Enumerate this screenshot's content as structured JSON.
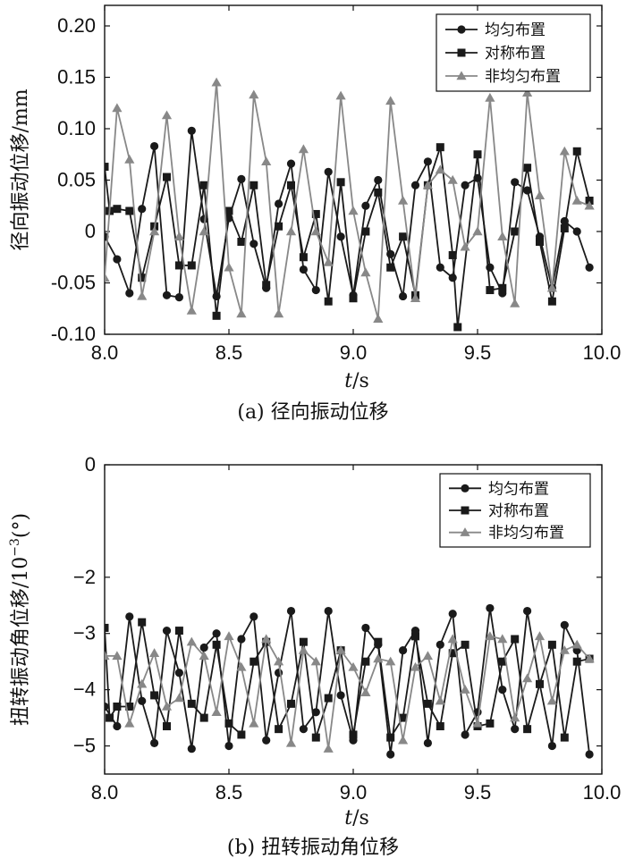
{
  "chart_data": [
    {
      "type": "line",
      "caption": "(a) 径向振动位移",
      "ylabel": "径向振动位移/mm",
      "xlabel": "t/s",
      "xlabel_var": "t",
      "xlabel_unit": "/s",
      "xlim": [
        8.0,
        10.0
      ],
      "ylim": [
        -0.1,
        0.22
      ],
      "xticks": [
        "8.0",
        "8.5",
        "9.0",
        "9.5",
        "10.0"
      ],
      "yticks": [
        "-0.10",
        "-0.05",
        "0",
        "0.05",
        "0.10",
        "0.15",
        "0.20"
      ],
      "legend_position": "top-right",
      "series": [
        {
          "name": "均匀布置",
          "marker": "circle",
          "color": "#1a1a1a",
          "x": [
            8.0,
            8.05,
            8.1,
            8.15,
            8.2,
            8.25,
            8.3,
            8.35,
            8.4,
            8.45,
            8.5,
            8.55,
            8.6,
            8.65,
            8.7,
            8.75,
            8.8,
            8.85,
            8.9,
            8.95,
            9.0,
            9.05,
            9.1,
            9.15,
            9.2,
            9.25,
            9.3,
            9.35,
            9.4,
            9.45,
            9.5,
            9.55,
            9.6,
            9.65,
            9.7,
            9.75,
            9.8,
            9.85,
            9.9,
            9.95
          ],
          "y": [
            -0.005,
            -0.027,
            -0.06,
            0.022,
            0.083,
            -0.062,
            -0.064,
            0.098,
            0.012,
            -0.063,
            0.013,
            0.051,
            -0.012,
            -0.055,
            0.027,
            0.066,
            -0.037,
            -0.057,
            0.058,
            -0.005,
            -0.062,
            0.025,
            0.05,
            -0.022,
            -0.063,
            0.045,
            0.068,
            -0.035,
            -0.045,
            0.045,
            0.052,
            -0.035,
            -0.06,
            0.048,
            0.04,
            -0.005,
            -0.055,
            0.01,
            0.0,
            -0.035
          ]
        },
        {
          "name": "对称布置",
          "marker": "square",
          "color": "#1a1a1a",
          "x": [
            8.0,
            8.02,
            8.05,
            8.1,
            8.15,
            8.2,
            8.25,
            8.3,
            8.35,
            8.4,
            8.45,
            8.5,
            8.55,
            8.6,
            8.65,
            8.7,
            8.75,
            8.8,
            8.85,
            8.9,
            8.95,
            9.0,
            9.05,
            9.1,
            9.15,
            9.2,
            9.25,
            9.3,
            9.35,
            9.4,
            9.42,
            9.5,
            9.55,
            9.6,
            9.65,
            9.7,
            9.75,
            9.8,
            9.85,
            9.9,
            9.95
          ],
          "y": [
            0.063,
            0.02,
            0.022,
            0.02,
            -0.045,
            0.005,
            0.053,
            -0.033,
            -0.033,
            0.045,
            -0.082,
            0.02,
            -0.01,
            0.045,
            -0.052,
            0.005,
            0.045,
            -0.025,
            0.017,
            -0.068,
            0.048,
            -0.065,
            0.0,
            0.038,
            -0.035,
            -0.005,
            -0.062,
            0.045,
            0.082,
            -0.023,
            -0.093,
            0.075,
            -0.057,
            -0.055,
            0.0,
            0.062,
            -0.01,
            -0.068,
            0.003,
            0.078,
            0.03
          ]
        },
        {
          "name": "非均匀布置",
          "marker": "triangle",
          "color": "#888888",
          "x": [
            8.0,
            8.05,
            8.1,
            8.15,
            8.2,
            8.25,
            8.3,
            8.35,
            8.4,
            8.45,
            8.5,
            8.55,
            8.6,
            8.65,
            8.7,
            8.75,
            8.8,
            8.85,
            8.9,
            8.95,
            9.0,
            9.05,
            9.1,
            9.15,
            9.2,
            9.25,
            9.3,
            9.35,
            9.4,
            9.45,
            9.5,
            9.55,
            9.6,
            9.65,
            9.7,
            9.75,
            9.8,
            9.85,
            9.9,
            9.95
          ],
          "y": [
            -0.045,
            0.12,
            0.07,
            -0.063,
            0.0,
            0.113,
            -0.005,
            -0.077,
            0.0,
            0.145,
            -0.035,
            -0.08,
            0.133,
            0.068,
            -0.08,
            0.0,
            0.08,
            0.0,
            -0.03,
            0.132,
            0.02,
            -0.04,
            -0.085,
            0.127,
            0.03,
            -0.065,
            0.045,
            0.06,
            0.05,
            -0.015,
            0.0,
            0.13,
            -0.005,
            -0.07,
            0.135,
            0.035,
            -0.055,
            0.078,
            0.03,
            0.025
          ]
        }
      ]
    },
    {
      "type": "line",
      "caption": "(b) 扭转振动角位移",
      "ylabel": "扭转振动角位移/10",
      "ylabel_exp": "−3",
      "ylabel_unit": "(°)",
      "xlabel": "t/s",
      "xlabel_var": "t",
      "xlabel_unit": "/s",
      "xlim": [
        8.0,
        10.0
      ],
      "ylim": [
        -5.5,
        0
      ],
      "xticks": [
        "8.0",
        "8.5",
        "9.0",
        "9.5",
        "10.0"
      ],
      "yticks": [
        "0",
        "−2",
        "−3",
        "−4",
        "−5"
      ],
      "legend_position": "top-right",
      "series": [
        {
          "name": "均匀布置",
          "marker": "circle",
          "color": "#1a1a1a",
          "x": [
            8.0,
            8.05,
            8.1,
            8.15,
            8.2,
            8.25,
            8.3,
            8.35,
            8.4,
            8.45,
            8.5,
            8.55,
            8.6,
            8.65,
            8.7,
            8.75,
            8.8,
            8.85,
            8.9,
            8.95,
            9.0,
            9.05,
            9.1,
            9.15,
            9.2,
            9.25,
            9.3,
            9.35,
            9.4,
            9.45,
            9.5,
            9.55,
            9.6,
            9.65,
            9.7,
            9.75,
            9.8,
            9.85,
            9.9,
            9.95
          ],
          "y": [
            -4.3,
            -4.65,
            -2.7,
            -4.2,
            -4.95,
            -2.95,
            -3.7,
            -5.05,
            -3.25,
            -3.0,
            -5.0,
            -3.1,
            -2.7,
            -4.9,
            -3.7,
            -2.6,
            -4.7,
            -4.4,
            -2.6,
            -4.1,
            -4.9,
            -2.9,
            -3.2,
            -5.15,
            -3.3,
            -2.95,
            -4.95,
            -3.2,
            -2.65,
            -4.8,
            -4.4,
            -2.55,
            -4.0,
            -4.7,
            -2.6,
            -3.9,
            -5.0,
            -2.85,
            -3.3,
            -5.15
          ]
        },
        {
          "name": "对称布置",
          "marker": "square",
          "color": "#1a1a1a",
          "x": [
            8.0,
            8.02,
            8.05,
            8.1,
            8.15,
            8.2,
            8.25,
            8.3,
            8.35,
            8.4,
            8.45,
            8.5,
            8.55,
            8.6,
            8.65,
            8.7,
            8.75,
            8.8,
            8.85,
            8.9,
            8.95,
            9.0,
            9.05,
            9.1,
            9.15,
            9.2,
            9.25,
            9.3,
            9.35,
            9.4,
            9.45,
            9.5,
            9.55,
            9.6,
            9.65,
            9.7,
            9.75,
            9.8,
            9.85,
            9.9,
            9.95
          ],
          "y": [
            -2.9,
            -4.5,
            -4.3,
            -4.3,
            -2.8,
            -4.1,
            -4.65,
            -2.95,
            -4.25,
            -4.5,
            -3.2,
            -4.6,
            -4.8,
            -3.5,
            -3.15,
            -4.7,
            -4.25,
            -3.15,
            -4.85,
            -4.15,
            -3.3,
            -4.8,
            -3.5,
            -3.15,
            -4.85,
            -4.5,
            -3.05,
            -4.25,
            -4.65,
            -3.35,
            -3.2,
            -4.65,
            -4.6,
            -3.5,
            -3.1,
            -4.7,
            -3.9,
            -3.2,
            -4.85,
            -3.5,
            -3.45
          ]
        },
        {
          "name": "非均匀布置",
          "marker": "triangle",
          "color": "#888888",
          "x": [
            8.0,
            8.05,
            8.1,
            8.15,
            8.2,
            8.25,
            8.3,
            8.35,
            8.4,
            8.45,
            8.5,
            8.55,
            8.6,
            8.65,
            8.7,
            8.75,
            8.8,
            8.85,
            8.9,
            8.95,
            9.0,
            9.05,
            9.1,
            9.15,
            9.2,
            9.25,
            9.3,
            9.35,
            9.4,
            9.45,
            9.5,
            9.55,
            9.6,
            9.65,
            9.7,
            9.75,
            9.8,
            9.85,
            9.9,
            9.95
          ],
          "y": [
            -3.4,
            -3.4,
            -4.6,
            -3.9,
            -3.35,
            -4.3,
            -4.15,
            -3.15,
            -3.4,
            -4.4,
            -3.05,
            -3.6,
            -4.6,
            -3.1,
            -3.5,
            -4.95,
            -3.3,
            -3.5,
            -5.05,
            -3.3,
            -3.6,
            -4.05,
            -3.45,
            -3.5,
            -4.9,
            -3.6,
            -3.4,
            -4.2,
            -3.1,
            -4.0,
            -4.6,
            -3.05,
            -3.1,
            -4.5,
            -3.8,
            -3.05,
            -4.2,
            -3.3,
            -3.2,
            -3.45
          ]
        }
      ]
    }
  ]
}
